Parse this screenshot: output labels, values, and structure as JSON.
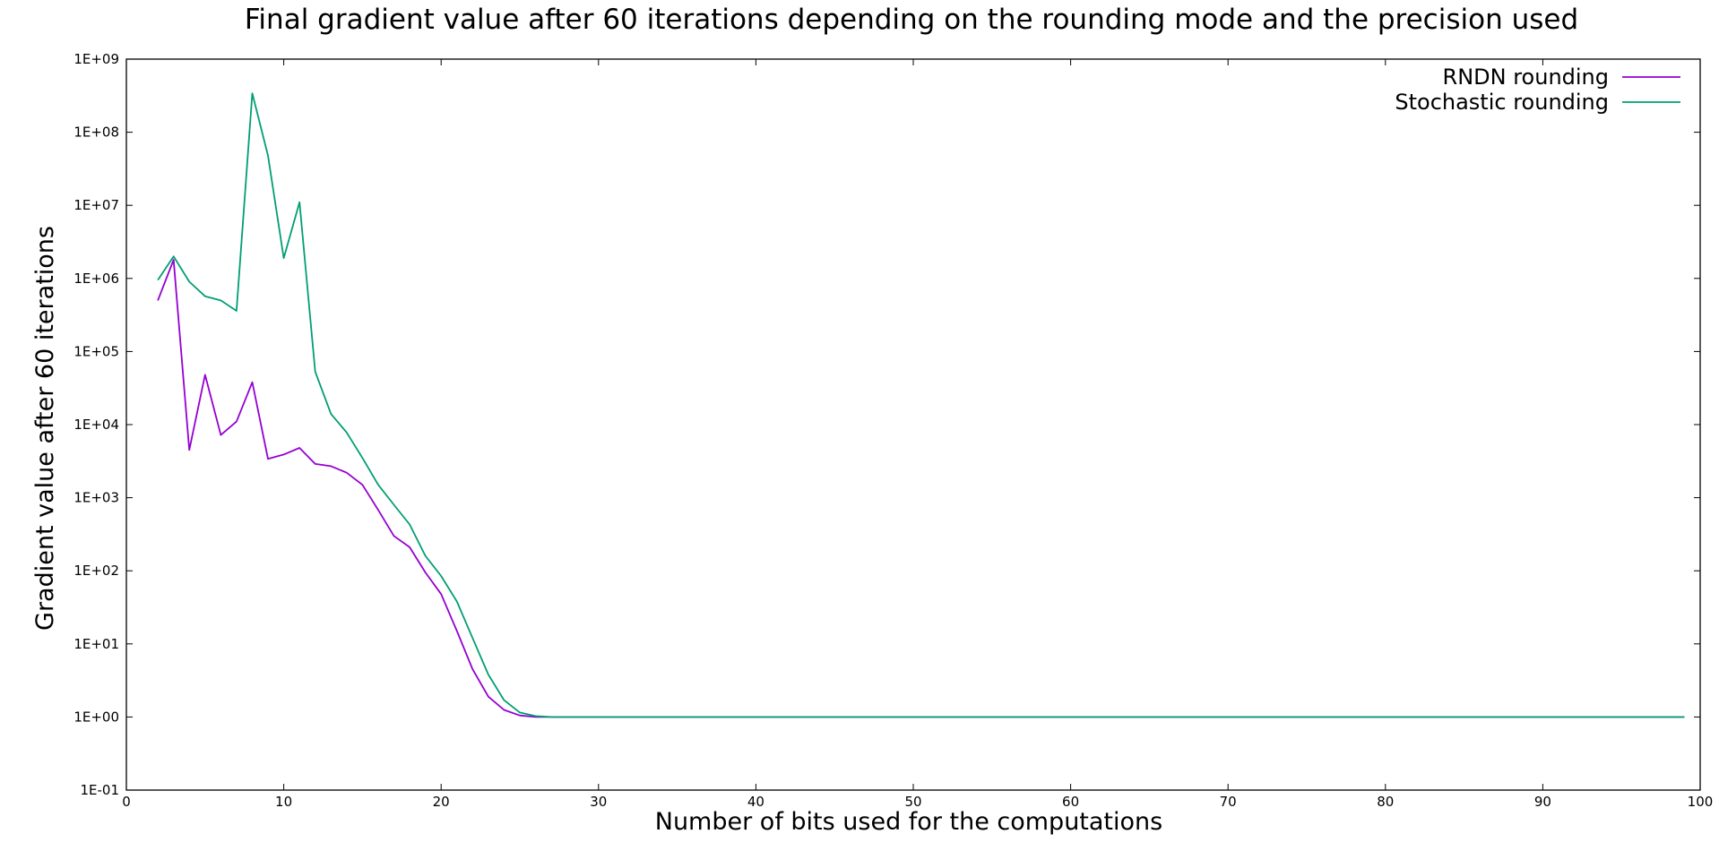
{
  "chart_data": {
    "type": "line",
    "title": "Final gradient value after 60 iterations depending on the rounding mode and the precision used",
    "xlabel": "Number of bits used for the computations",
    "ylabel": "Gradient value after 60 iterations",
    "xlim": [
      0,
      100
    ],
    "ylim": [
      0.1,
      1000000000
    ],
    "yscale": "log",
    "grid": false,
    "legend_position": "top-right",
    "x_ticks": [
      0,
      10,
      20,
      30,
      40,
      50,
      60,
      70,
      80,
      90,
      100
    ],
    "x_tick_labels": [
      "0",
      "10",
      "20",
      "30",
      "40",
      "50",
      "60",
      "70",
      "80",
      "90",
      "100"
    ],
    "y_ticks": [
      0.1,
      1,
      10,
      100,
      1000,
      10000,
      100000,
      1000000,
      10000000,
      100000000,
      1000000000
    ],
    "y_tick_labels": [
      "1E-01",
      "1E+00",
      "1E+01",
      "1E+02",
      "1E+03",
      "1E+04",
      "1E+05",
      "1E+06",
      "1E+07",
      "1E+08",
      "1E+09"
    ],
    "series": [
      {
        "name": "RNDN rounding",
        "color": "#9400d3",
        "x": [
          2,
          3,
          4,
          5,
          6,
          7,
          8,
          9,
          10,
          11,
          12,
          13,
          14,
          15,
          16,
          17,
          18,
          19,
          20,
          21,
          22,
          23,
          24,
          25,
          26,
          27,
          28,
          29,
          30,
          99
        ],
        "y": [
          500000,
          1800000,
          4500,
          48000,
          7200,
          11000,
          38000,
          3400,
          3900,
          4800,
          2900,
          2700,
          2200,
          1500,
          680,
          300,
          210,
          95,
          48,
          15,
          4.5,
          1.9,
          1.25,
          1.05,
          1.0,
          1.0,
          1.0,
          1.0,
          1.0,
          1.0
        ]
      },
      {
        "name": "Stochastic rounding",
        "color": "#009e73",
        "x": [
          2,
          3,
          4,
          5,
          6,
          7,
          8,
          9,
          10,
          11,
          12,
          13,
          14,
          15,
          16,
          17,
          18,
          19,
          20,
          21,
          22,
          23,
          24,
          25,
          26,
          27,
          28,
          29,
          30,
          99
        ],
        "y": [
          950000,
          2000000,
          900000,
          570000,
          500000,
          360000,
          340000000,
          48000000,
          1900000,
          11000000,
          53000,
          14000,
          7800,
          3500,
          1500,
          800,
          430,
          160,
          85,
          38,
          12,
          3.8,
          1.7,
          1.15,
          1.03,
          1.0,
          1.0,
          1.0,
          1.0,
          1.0
        ]
      }
    ]
  }
}
